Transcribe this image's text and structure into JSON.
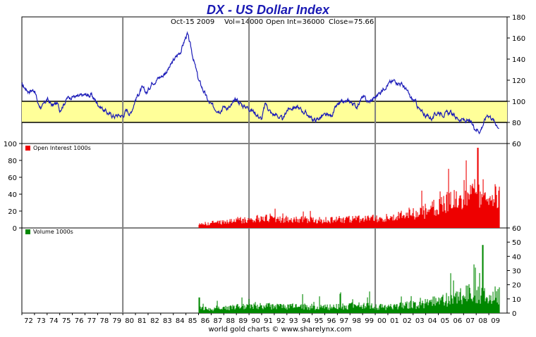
{
  "title": "DX  -  US Dollar Index",
  "info": {
    "date": "Oct-15  2009",
    "vol": "Vol=14000",
    "oi": "Open Int=36000",
    "close": "Close=75.66"
  },
  "footer": "world gold charts © www.sharelynx.com",
  "colors": {
    "title": "#1a1ab4",
    "price_line": "#1c1cb8",
    "band_fill": "#ffff99",
    "oi_bars": "#ee0000",
    "volume_bars": "#008800",
    "vertical_markers": "#808080"
  },
  "chart_data": [
    {
      "type": "line",
      "name": "price",
      "title": "DX  -  US Dollar Index",
      "ylim": [
        60,
        180
      ],
      "y_ticks": [
        "60",
        "80",
        "100",
        "120",
        "140",
        "160",
        "180"
      ],
      "y_axis": "right",
      "band": [
        80,
        100
      ],
      "x": [
        "1972",
        "1972.5",
        "1973",
        "1973.3",
        "1973.6",
        "1974",
        "1974.4",
        "1974.8",
        "1975",
        "1975.6",
        "1976",
        "1976.5",
        "1977",
        "1977.5",
        "1978",
        "1978.4",
        "1978.9",
        "1979.3",
        "1979.7",
        "1980",
        "1980.3",
        "1980.6",
        "1981",
        "1981.5",
        "1981.9",
        "1982.3",
        "1982.8",
        "1983.2",
        "1983.7",
        "1984.1",
        "1984.6",
        "1984.9",
        "1985.1",
        "1985.3",
        "1985.6",
        "1986",
        "1986.4",
        "1986.8",
        "1987.2",
        "1987.7",
        "1988",
        "1988.5",
        "1989",
        "1989.5",
        "1990",
        "1990.5",
        "1991",
        "1991.3",
        "1991.8",
        "1992.2",
        "1992.7",
        "1993",
        "1993.6",
        "1994",
        "1994.6",
        "1995",
        "1995.3",
        "1995.8",
        "1996.5",
        "1997",
        "1997.5",
        "1998",
        "1998.5",
        "1999",
        "1999.5",
        "2000",
        "2000.5",
        "2000.9",
        "2001.3",
        "2001.6",
        "2002",
        "2002.4",
        "2002.8",
        "2003.2",
        "2003.6",
        "2004",
        "2004.5",
        "2005",
        "2005.5",
        "2006",
        "2006.5",
        "2007",
        "2007.5",
        "2007.9",
        "2008.3",
        "2008.6",
        "2008.9",
        "2009.2",
        "2009.5",
        "2009.8"
      ],
      "values": [
        115,
        110,
        111,
        97,
        94,
        102,
        96,
        98,
        92,
        103,
        105,
        104,
        106,
        106,
        98,
        93,
        88,
        86,
        87,
        86,
        92,
        88,
        102,
        112,
        108,
        118,
        122,
        125,
        132,
        140,
        148,
        158,
        164,
        155,
        140,
        120,
        110,
        99,
        94,
        92,
        95,
        94,
        102,
        96,
        94,
        89,
        83,
        98,
        88,
        87,
        82,
        92,
        95,
        93,
        88,
        83,
        82,
        86,
        86,
        96,
        99,
        100,
        95,
        104,
        99,
        104,
        110,
        116,
        118,
        120,
        117,
        112,
        103,
        99,
        90,
        87,
        84,
        90,
        88,
        89,
        84,
        82,
        80,
        75,
        72,
        80,
        88,
        85,
        80,
        76
      ],
      "note_markers_x": [
        "1980",
        "1990",
        "2000"
      ]
    },
    {
      "type": "bar",
      "name": "open_interest",
      "legend": "Open Interest 1000s",
      "ylim": [
        0,
        100
      ],
      "y_ticks": [
        "0",
        "20",
        "40",
        "60",
        "80",
        "100"
      ],
      "y_axis": "left",
      "x": [
        "1986",
        "1987",
        "1988",
        "1989",
        "1990",
        "1991",
        "1992",
        "1993",
        "1994",
        "1995",
        "1996",
        "1997",
        "1998",
        "1999",
        "2000",
        "2001",
        "2002",
        "2003",
        "2004",
        "2005",
        "2006",
        "2007",
        "2008",
        "2009"
      ],
      "values": [
        4,
        6,
        7,
        9,
        10,
        11,
        11,
        10,
        10,
        9,
        9,
        10,
        10,
        11,
        11,
        12,
        14,
        17,
        20,
        25,
        32,
        40,
        45,
        36
      ],
      "peak": {
        "x": "2008.1",
        "value": 95
      }
    },
    {
      "type": "bar",
      "name": "volume",
      "legend": "Volume 1000s",
      "ylim": [
        0,
        60
      ],
      "y_ticks": [
        "0",
        "10",
        "20",
        "30",
        "40",
        "50",
        "60"
      ],
      "y_axis": "right",
      "x": [
        "1986",
        "1987",
        "1988",
        "1989",
        "1990",
        "1991",
        "1992",
        "1993",
        "1994",
        "1995",
        "1996",
        "1997",
        "1998",
        "1999",
        "2000",
        "2001",
        "2002",
        "2003",
        "2004",
        "2005",
        "2006",
        "2007",
        "2008",
        "2009"
      ],
      "values": [
        4,
        3,
        4,
        5,
        6,
        6,
        6,
        5,
        6,
        5,
        5,
        5,
        6,
        6,
        5,
        5,
        6,
        7,
        8,
        10,
        12,
        15,
        17,
        14
      ],
      "peak": {
        "x": "2008.5",
        "value": 48
      }
    }
  ],
  "x_axis": {
    "labels": [
      "72",
      "73",
      "74",
      "75",
      "76",
      "77",
      "78",
      "79",
      "80",
      "81",
      "82",
      "83",
      "84",
      "85",
      "86",
      "87",
      "88",
      "89",
      "90",
      "91",
      "92",
      "93",
      "94",
      "95",
      "96",
      "97",
      "98",
      "99",
      "00",
      "01",
      "02",
      "03",
      "04",
      "05",
      "06",
      "07",
      "08",
      "09"
    ],
    "start_year": 1972,
    "end_year": 2010
  }
}
